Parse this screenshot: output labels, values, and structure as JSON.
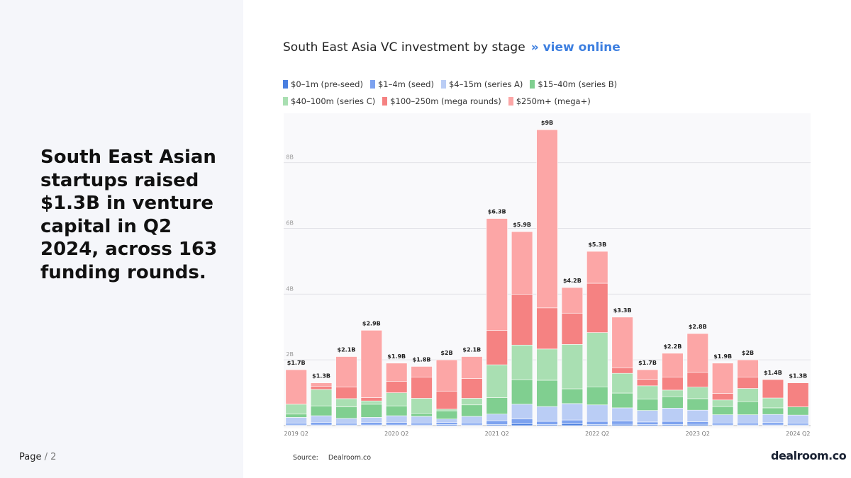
{
  "slide": {
    "headline": "South East Asian startups raised $1.3B in venture capital in Q2 2024, across 163 funding rounds.",
    "page_label": "Page",
    "page_number": "/ 2",
    "logo": "dealroom.co"
  },
  "chart_data": {
    "type": "stacked-bar",
    "title": "South East Asia VC investment by stage",
    "link_text": "view online",
    "source_label": "Source:",
    "source": "Dealroom.co",
    "categories": [
      "2019 Q2",
      null,
      null,
      null,
      "2020 Q2",
      null,
      null,
      null,
      "2021 Q2",
      null,
      null,
      null,
      "2022 Q2",
      null,
      null,
      null,
      "2023 Q2",
      null,
      null,
      null,
      "2024 Q2"
    ],
    "ylim": [
      0,
      9.5
    ],
    "yticks": [
      {
        "value": 2,
        "label": "2B"
      },
      {
        "value": 4,
        "label": "4B"
      },
      {
        "value": 6,
        "label": "6B"
      },
      {
        "value": 8,
        "label": "8B"
      }
    ],
    "grid": true,
    "series": [
      {
        "name": "$0–1m (pre-seed)",
        "color": "#4a7fe0",
        "values": [
          0.02,
          0.02,
          0.02,
          0.02,
          0.02,
          0.02,
          0.03,
          0.02,
          0.03,
          0.05,
          0.03,
          0.05,
          0.03,
          0.04,
          0.03,
          0.03,
          0.04,
          0.02,
          0.02,
          0.02,
          0.02
        ]
      },
      {
        "name": "$1–4m (seed)",
        "color": "#7da2ef",
        "values": [
          0.05,
          0.08,
          0.05,
          0.08,
          0.08,
          0.06,
          0.07,
          0.06,
          0.12,
          0.15,
          0.1,
          0.12,
          0.1,
          0.1,
          0.08,
          0.1,
          0.08,
          0.06,
          0.06,
          0.07,
          0.05
        ]
      },
      {
        "name": "$4–15m (series A)",
        "color": "#bacdf5",
        "values": [
          0.18,
          0.2,
          0.15,
          0.15,
          0.2,
          0.2,
          0.1,
          0.2,
          0.2,
          0.45,
          0.45,
          0.5,
          0.5,
          0.4,
          0.35,
          0.4,
          0.35,
          0.25,
          0.25,
          0.25,
          0.25
        ]
      },
      {
        "name": "$15–40m (series B)",
        "color": "#80cf90",
        "values": [
          0.1,
          0.3,
          0.35,
          0.4,
          0.3,
          0.1,
          0.25,
          0.35,
          0.5,
          0.75,
          0.8,
          0.45,
          0.55,
          0.45,
          0.35,
          0.35,
          0.35,
          0.25,
          0.4,
          0.2,
          0.25
        ]
      },
      {
        "name": "$40–100m (series C)",
        "color": "#a9dfb2",
        "values": [
          0.3,
          0.5,
          0.25,
          0.1,
          0.4,
          0.45,
          0.05,
          0.2,
          1.0,
          1.05,
          0.95,
          1.35,
          1.65,
          0.6,
          0.4,
          0.2,
          0.35,
          0.2,
          0.4,
          0.3,
          0
        ]
      },
      {
        "name": "$100–250m (mega rounds)",
        "color": "#f58282",
        "values": [
          0,
          0.1,
          0.35,
          0.1,
          0.35,
          0.65,
          0.55,
          0.6,
          1.05,
          1.55,
          1.25,
          0.95,
          1.5,
          0.17,
          0.2,
          0.4,
          0.45,
          0.2,
          0.35,
          0.56,
          0.73
        ]
      },
      {
        "name": "$250m+ (mega+)",
        "color": "#fca6a6",
        "values": [
          1.05,
          0.1,
          0.93,
          2.05,
          0.55,
          0.32,
          0.95,
          0.67,
          3.4,
          1.9,
          5.42,
          0.78,
          0.97,
          1.54,
          0.29,
          0.72,
          1.18,
          0.92,
          0.52,
          0,
          0
        ]
      }
    ],
    "totals": {
      "values": [
        1.7,
        1.3,
        2.1,
        2.9,
        1.9,
        1.8,
        2,
        2.1,
        6.3,
        5.9,
        9,
        4.2,
        5.3,
        3.3,
        1.7,
        2.2,
        2.8,
        1.9,
        2,
        1.4,
        1.3
      ],
      "value_labels": [
        "$1.7B",
        "$1.3B",
        "$2.1B",
        "$2.9B",
        "$1.9B",
        "$1.8B",
        "$2B",
        "$2.1B",
        "$6.3B",
        "$5.9B",
        "$9B",
        "$4.2B",
        "$5.3B",
        "$3.3B",
        "$1.7B",
        "$2.2B",
        "$2.8B",
        "$1.9B",
        "$2B",
        "$1.4B",
        "$1.3B"
      ]
    }
  }
}
